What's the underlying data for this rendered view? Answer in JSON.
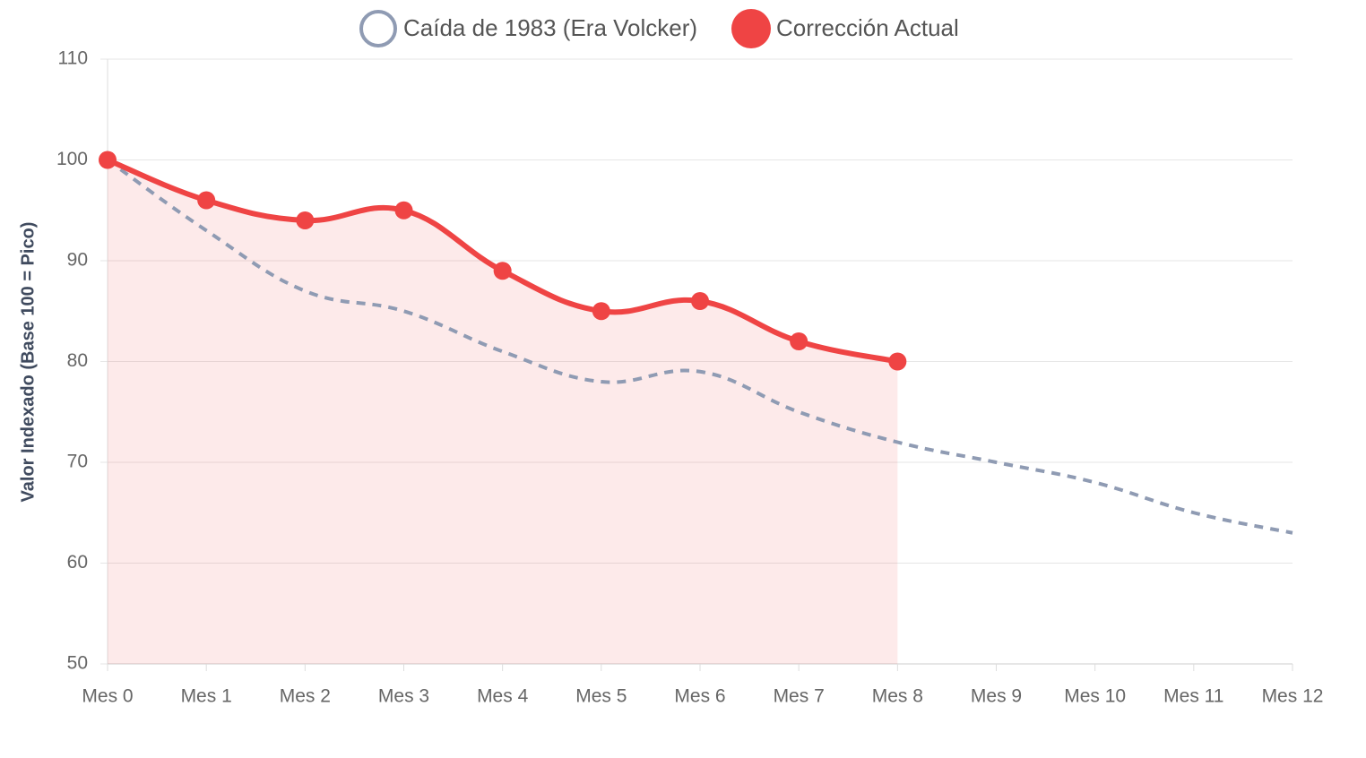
{
  "chart_data": {
    "type": "line",
    "y_label": "Valor Indexado (Base 100 = Pico)",
    "categories": [
      "Mes 0",
      "Mes 1",
      "Mes 2",
      "Mes 3",
      "Mes 4",
      "Mes 5",
      "Mes 6",
      "Mes 7",
      "Mes 8",
      "Mes 9",
      "Mes 10",
      "Mes 11",
      "Mes 12"
    ],
    "series": [
      {
        "name": "Caída de 1983 (Era Volcker)",
        "color": "#8f9bb3",
        "dashed": true,
        "values": [
          100,
          93,
          87,
          85,
          81,
          78,
          79,
          75,
          72,
          70,
          68,
          65,
          63
        ]
      },
      {
        "name": "Corrección Actual",
        "color": "#ef4444",
        "fill": "rgba(239,68,68,0.11)",
        "values": [
          100,
          96,
          94,
          95,
          89,
          85,
          86,
          82,
          80,
          null,
          null,
          null,
          null
        ]
      }
    ],
    "ylim": [
      50,
      110
    ],
    "yticks": [
      50,
      60,
      70,
      80,
      90,
      100,
      110
    ],
    "grid": true
  }
}
